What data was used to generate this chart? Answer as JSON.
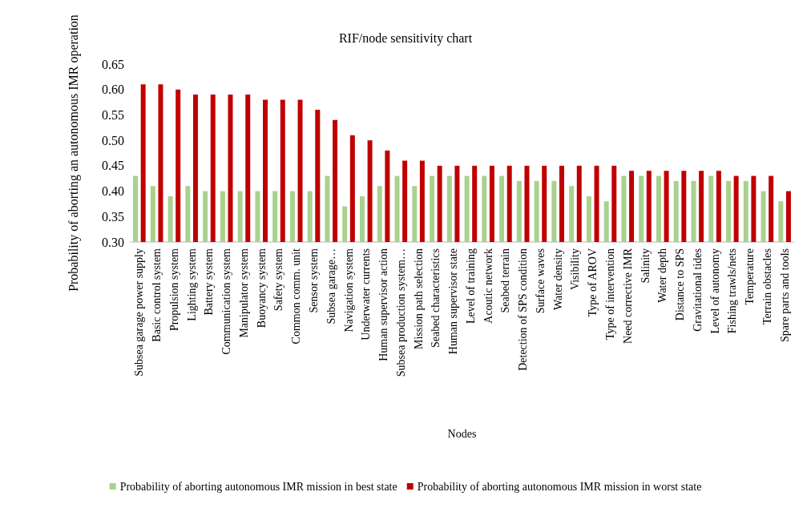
{
  "chart_data": {
    "type": "bar",
    "title": "RIF/node sensitivity chart",
    "xlabel": "Nodes",
    "ylabel": "Probability of aborting an autonomous IMR operation",
    "categories": [
      "Subsea garage power supply",
      "Basic control system",
      "Propulsion system",
      "Lighting system",
      "Battery system",
      "Communication system",
      "Manipulator system",
      "Buoyancy system",
      "Safety system",
      "Common comm. unit",
      "Sensor system",
      "Subsea garage…",
      "Navigation system",
      "Underwater currents",
      "Human supervisor action",
      "Subsea production system…",
      "Mission path selection",
      "Seabed characteristics",
      "Human supervisor state",
      "Level of training",
      "Acoutic network",
      "Seabed terrain",
      "Detection of SPS condition",
      "Surface waves",
      "Water density",
      "Visibility",
      "Type of AROV",
      "Type of intervention",
      "Need corrective IMR",
      "Salinity",
      "Water depth",
      "Distance to SPS",
      "Gravitational tides",
      "Level of autonomy",
      "Fishing trawls/nets",
      "Temperature",
      "Terrain obstacles",
      "Spare parts and tools"
    ],
    "series": [
      {
        "name": "Probability of aborting autonomous IMR mission in best state",
        "color": "#a9d18e",
        "values": [
          0.43,
          0.41,
          0.39,
          0.41,
          0.4,
          0.4,
          0.4,
          0.4,
          0.4,
          0.4,
          0.4,
          0.43,
          0.37,
          0.39,
          0.41,
          0.43,
          0.41,
          0.43,
          0.43,
          0.43,
          0.43,
          0.43,
          0.42,
          0.42,
          0.42,
          0.41,
          0.39,
          0.38,
          0.43,
          0.43,
          0.43,
          0.42,
          0.42,
          0.43,
          0.42,
          0.42,
          0.4,
          0.38
        ]
      },
      {
        "name": "Probability of aborting autonomous IMR mission in worst state",
        "color": "#c00000",
        "values": [
          0.61,
          0.61,
          0.6,
          0.59,
          0.59,
          0.59,
          0.59,
          0.58,
          0.58,
          0.58,
          0.56,
          0.54,
          0.51,
          0.5,
          0.48,
          0.46,
          0.46,
          0.45,
          0.45,
          0.45,
          0.45,
          0.45,
          0.45,
          0.45,
          0.45,
          0.45,
          0.45,
          0.45,
          0.44,
          0.44,
          0.44,
          0.44,
          0.44,
          0.44,
          0.43,
          0.43,
          0.43,
          0.4
        ]
      }
    ],
    "ylim": [
      0.3,
      0.65
    ],
    "yticks": [
      {
        "value": 0.3,
        "label": "0.30"
      },
      {
        "value": 0.35,
        "label": "0.35"
      },
      {
        "value": 0.4,
        "label": "0.40"
      },
      {
        "value": 0.45,
        "label": "0.45"
      },
      {
        "value": 0.5,
        "label": "0.50"
      },
      {
        "value": 0.55,
        "label": "0.55"
      },
      {
        "value": 0.6,
        "label": "0.60"
      },
      {
        "value": 0.65,
        "label": "0.65"
      }
    ],
    "grid": false,
    "legend": "bottom"
  }
}
